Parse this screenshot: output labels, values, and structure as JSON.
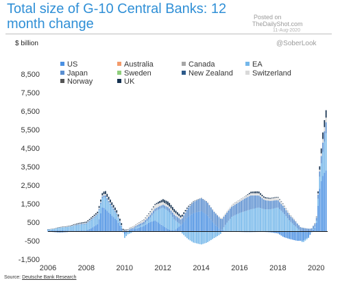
{
  "header": {
    "title": "Total size of G-10 Central Banks: 12 month change",
    "watermark_posted": "Posted on",
    "watermark_site": "TheDailyShot.com",
    "watermark_date": "11-Aug-2020",
    "handle": "@SoberLook",
    "unit": "$ billion"
  },
  "footer": {
    "source_prefix": "Source: ",
    "source_name": "Deutsche Bank Research"
  },
  "chart_data": {
    "type": "bar",
    "stacked": true,
    "x_tick_labels": [
      "2006",
      "2008",
      "2010",
      "2012",
      "2014",
      "2016",
      "2018",
      "2020"
    ],
    "y_tick_labels": [
      "-1,500",
      "-500",
      "500",
      "1,500",
      "2,500",
      "3,500",
      "4,500",
      "5,500",
      "6,500",
      "7,500",
      "8,500"
    ],
    "ylim": [
      -1500,
      8500
    ],
    "xlim": [
      2006.0,
      2020.6
    ],
    "zero_line": true,
    "legend_position": "top-left",
    "series_colors": {
      "US": "#4a90e2",
      "Australia": "#f39b6b",
      "Canada": "#a6a6a6",
      "EA": "#74b7ea",
      "Japan": "#5b8fd0",
      "Sweden": "#8fce7c",
      "New Zealand": "#2d5a8a",
      "Switzerland": "#d9d9d9",
      "Norway": "#555555",
      "UK": "#14304f"
    },
    "series_names": [
      "US",
      "Australia",
      "Canada",
      "EA",
      "Japan",
      "Sweden",
      "New Zealand",
      "Switzerland",
      "Norway",
      "UK"
    ],
    "points": [
      {
        "t": 2006.0,
        "US": 50,
        "EA": 60,
        "Japan": 10,
        "UK": 10,
        "Switzerland": 0
      },
      {
        "t": 2006.3,
        "US": 60,
        "EA": 80,
        "Japan": -30,
        "UK": 10,
        "Switzerland": 10
      },
      {
        "t": 2006.6,
        "US": 60,
        "EA": 150,
        "Japan": -60,
        "UK": 20,
        "Switzerland": 10
      },
      {
        "t": 2007.0,
        "US": 50,
        "EA": 200,
        "Japan": -30,
        "UK": 20,
        "Switzerland": 20
      },
      {
        "t": 2007.3,
        "US": 40,
        "EA": 260,
        "Japan": 20,
        "UK": 30,
        "Switzerland": 20
      },
      {
        "t": 2007.6,
        "US": 50,
        "EA": 300,
        "Japan": 40,
        "UK": 40,
        "Switzerland": 30
      },
      {
        "t": 2008.0,
        "US": 50,
        "EA": 350,
        "Japan": 40,
        "UK": 50,
        "Switzerland": 40
      },
      {
        "t": 2008.3,
        "US": 200,
        "EA": 450,
        "Japan": 50,
        "UK": 60,
        "Switzerland": 40
      },
      {
        "t": 2008.6,
        "US": 400,
        "EA": 500,
        "Japan": 50,
        "UK": 80,
        "Switzerland": 50
      },
      {
        "t": 2008.85,
        "US": 1350,
        "EA": 500,
        "Japan": 100,
        "UK": 120,
        "Switzerland": 60
      },
      {
        "t": 2009.0,
        "US": 1200,
        "EA": 650,
        "Japan": 100,
        "UK": 160,
        "Switzerland": 80
      },
      {
        "t": 2009.3,
        "US": 900,
        "EA": 450,
        "Japan": 80,
        "UK": 150,
        "Switzerland": 60
      },
      {
        "t": 2009.6,
        "US": 600,
        "EA": 300,
        "Japan": 60,
        "UK": 130,
        "Switzerland": 40
      },
      {
        "t": 2009.85,
        "US": 150,
        "EA": 100,
        "Japan": 40,
        "UK": 100,
        "Switzerland": 30
      },
      {
        "t": 2010.0,
        "US": -150,
        "EA": -200,
        "Japan": 30,
        "UK": 40,
        "Switzerland": 30
      },
      {
        "t": 2010.3,
        "US": 100,
        "EA": -100,
        "Japan": 60,
        "UK": 10,
        "Switzerland": 60
      },
      {
        "t": 2010.6,
        "US": 150,
        "EA": 80,
        "Japan": 80,
        "UK": 10,
        "Switzerland": 80
      },
      {
        "t": 2011.0,
        "US": 300,
        "EA": 100,
        "Japan": 120,
        "UK": 20,
        "Switzerland": 100
      },
      {
        "t": 2011.3,
        "US": 500,
        "EA": 200,
        "Japan": 150,
        "UK": 30,
        "Switzerland": 150
      },
      {
        "t": 2011.6,
        "US": 600,
        "EA": 500,
        "Japan": 150,
        "UK": 50,
        "Switzerland": 200
      },
      {
        "t": 2012.0,
        "US": 300,
        "EA": 1000,
        "Japan": 150,
        "UK": 150,
        "Switzerland": 150
      },
      {
        "t": 2012.3,
        "US": 100,
        "EA": 1000,
        "Japan": 200,
        "UK": 200,
        "Switzerland": 100
      },
      {
        "t": 2012.6,
        "US": 50,
        "EA": 600,
        "Japan": 250,
        "UK": 150,
        "Switzerland": 150
      },
      {
        "t": 2013.0,
        "US": 400,
        "EA": -100,
        "Japan": 300,
        "UK": 100,
        "Switzerland": 100
      },
      {
        "t": 2013.3,
        "US": 800,
        "EA": -400,
        "Japan": 450,
        "UK": 50,
        "Switzerland": 50
      },
      {
        "t": 2013.6,
        "US": 1000,
        "EA": -600,
        "Japan": 600,
        "UK": 20,
        "Switzerland": 20
      },
      {
        "t": 2014.0,
        "US": 1100,
        "EA": -700,
        "Japan": 700,
        "UK": 10,
        "Switzerland": 10
      },
      {
        "t": 2014.3,
        "US": 900,
        "EA": -600,
        "Japan": 700,
        "UK": 10,
        "Switzerland": 10
      },
      {
        "t": 2014.6,
        "US": 500,
        "EA": -400,
        "Japan": 650,
        "UK": 0,
        "Switzerland": 20
      },
      {
        "t": 2015.0,
        "US": 100,
        "EA": -150,
        "Japan": 600,
        "UK": 0,
        "Switzerland": 50
      },
      {
        "t": 2015.3,
        "US": 20,
        "EA": 400,
        "Japan": 550,
        "UK": 0,
        "Switzerland": 80
      },
      {
        "t": 2015.6,
        "US": 0,
        "EA": 800,
        "Japan": 550,
        "UK": 0,
        "Switzerland": 100
      },
      {
        "t": 2016.0,
        "US": -20,
        "EA": 1000,
        "Japan": 600,
        "UK": 10,
        "Switzerland": 100
      },
      {
        "t": 2016.3,
        "US": -30,
        "EA": 1100,
        "Japan": 700,
        "UK": 10,
        "Switzerland": 100
      },
      {
        "t": 2016.6,
        "US": -30,
        "EA": 1200,
        "Japan": 750,
        "UK": 80,
        "Switzerland": 120
      },
      {
        "t": 2017.0,
        "US": -20,
        "EA": 1300,
        "Japan": 650,
        "UK": 100,
        "Switzerland": 120
      },
      {
        "t": 2017.3,
        "US": -20,
        "EA": 1200,
        "Japan": 500,
        "UK": 60,
        "Switzerland": 100
      },
      {
        "t": 2017.6,
        "US": -40,
        "EA": 1200,
        "Japan": 450,
        "UK": 40,
        "Switzerland": 120
      },
      {
        "t": 2018.0,
        "US": -100,
        "EA": 1300,
        "Japan": 400,
        "UK": 30,
        "Switzerland": 150
      },
      {
        "t": 2018.3,
        "US": -300,
        "EA": 1000,
        "Japan": 350,
        "UK": 20,
        "Switzerland": 100
      },
      {
        "t": 2018.6,
        "US": -400,
        "EA": 600,
        "Japan": 300,
        "UK": 10,
        "Switzerland": 60
      },
      {
        "t": 2019.0,
        "US": -500,
        "EA": 200,
        "Japan": 250,
        "UK": 0,
        "Switzerland": 20
      },
      {
        "t": 2019.3,
        "US": -500,
        "EA": -100,
        "Japan": 200,
        "UK": 0,
        "Switzerland": 20
      },
      {
        "t": 2019.6,
        "US": -300,
        "EA": -50,
        "Japan": 150,
        "UK": 0,
        "Switzerland": 20
      },
      {
        "t": 2019.85,
        "US": 100,
        "EA": 50,
        "Japan": 150,
        "UK": 0,
        "Switzerland": 30
      },
      {
        "t": 2020.0,
        "US": 300,
        "EA": 50,
        "Japan": 150,
        "UK": 10,
        "Switzerland": 40
      },
      {
        "t": 2020.2,
        "US": 2500,
        "EA": 700,
        "Japan": 300,
        "UK": 200,
        "Switzerland": 100
      },
      {
        "t": 2020.35,
        "US": 3000,
        "EA": 1300,
        "Japan": 500,
        "UK": 350,
        "Switzerland": 200
      },
      {
        "t": 2020.5,
        "US": 3300,
        "EA": 2000,
        "Japan": 600,
        "UK": 400,
        "Switzerland": 250
      }
    ]
  }
}
